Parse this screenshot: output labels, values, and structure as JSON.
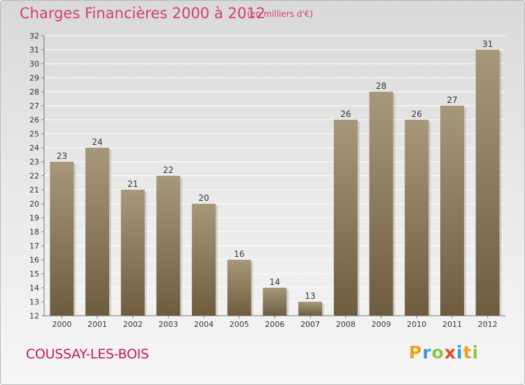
{
  "header": {
    "title": "Charges Financières 2000 à 2012",
    "subtitle": "(en milliers d'€)"
  },
  "footer": {
    "town": "COUSSAY-LES-BOIS",
    "brand_letters": [
      "P",
      "r",
      "o",
      "x",
      "i",
      "t",
      "i"
    ],
    "brand_colors": [
      "#f0a01e",
      "#3a9bd6",
      "#8cc63f",
      "#e8462a",
      "#3a9bd6",
      "#f0a01e",
      "#8cc63f"
    ]
  },
  "colors": {
    "bar_light": "#a8987a",
    "bar_dark": "#6e5c3e",
    "title": "#d23f6b",
    "town": "#c2195a"
  },
  "chart_data": {
    "type": "bar",
    "categories": [
      "2000",
      "2001",
      "2002",
      "2003",
      "2004",
      "2005",
      "2006",
      "2007",
      "2008",
      "2009",
      "2010",
      "2011",
      "2012"
    ],
    "values": [
      23,
      24,
      21,
      22,
      20,
      16,
      14,
      13,
      26,
      28,
      26,
      27,
      31
    ],
    "ylim": [
      12,
      32
    ],
    "yticks": [
      12,
      13,
      14,
      15,
      16,
      17,
      18,
      19,
      20,
      21,
      22,
      23,
      24,
      25,
      26,
      27,
      28,
      29,
      30,
      31,
      32
    ],
    "grid": true,
    "data_labels": true
  }
}
